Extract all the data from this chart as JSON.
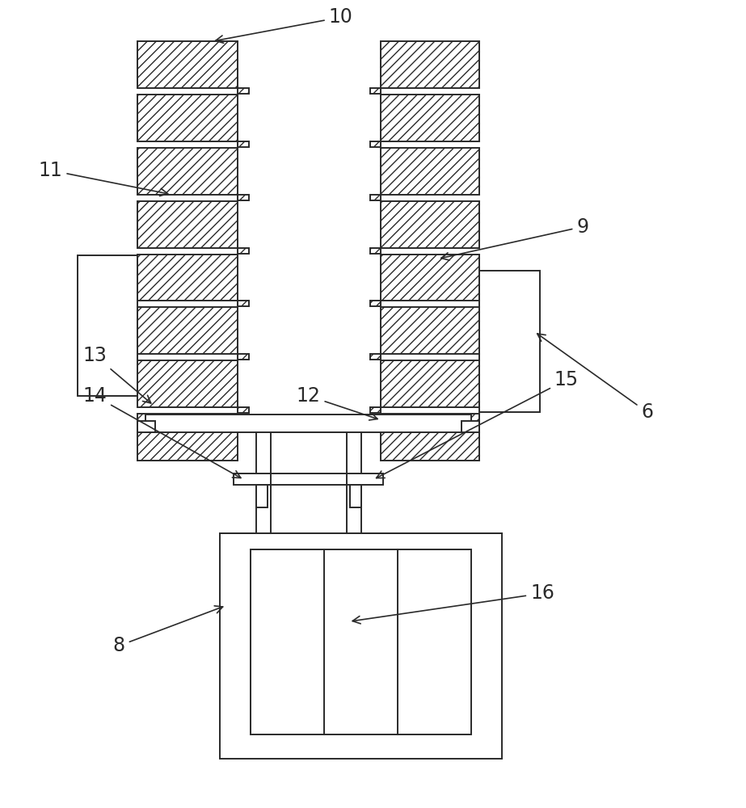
{
  "line_color": "#2a2a2a",
  "label_color": "#2a2a2a",
  "fig_width": 9.23,
  "fig_height": 10.0,
  "hatch_density": "///",
  "lw": 1.4
}
